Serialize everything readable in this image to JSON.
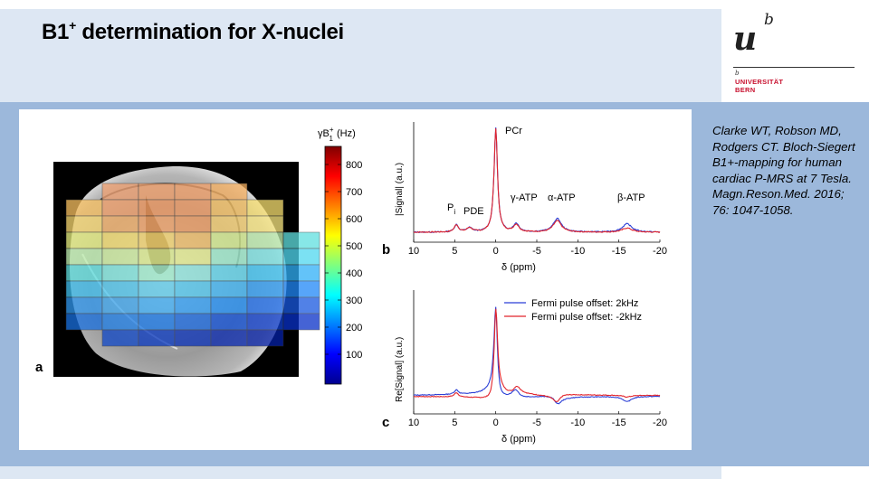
{
  "slide": {
    "title_main": "B1",
    "title_sup": "+",
    "title_rest": " determination for X-nuclei"
  },
  "logo": {
    "u": "u",
    "b": "b",
    "small_b": "b",
    "line1": "UNIVERSITÄT",
    "line2": "BERN"
  },
  "citation": "Clarke WT, Robson MD, Rodgers CT. Bloch-Siegert B1+-mapping for human cardiac P-MRS at 7 Tesla. Magn.Reson.Med. 2016; 76: 1047-1058.",
  "figure": {
    "panel_labels": {
      "a": "a",
      "b": "b",
      "c": "c"
    },
    "colorbar": {
      "label": "γB1+ (Hz)",
      "label_gamma_b": "γB",
      "label_sup": "+",
      "label_sub": "1",
      "label_unit": "(Hz)",
      "ticks": [
        "800",
        "700",
        "600",
        "500",
        "400",
        "300",
        "200",
        "100"
      ]
    },
    "ticks_x": [
      "10",
      "5",
      "0",
      "-5",
      "-10",
      "-15",
      "-20"
    ],
    "xlabel": "δ (ppm)",
    "ylabel_b": "|Signal| (a.u.)",
    "ylabel_c": "Re[Signal] (a.u.)",
    "peaks": {
      "pcr": "PCr",
      "pi_p": "P",
      "pi_i": "i",
      "pde": "PDE",
      "gatp": "γ-ATP",
      "aatp": "α-ATP",
      "batp": "β-ATP"
    },
    "legend": {
      "blue": "Fermi pulse offset: 2kHz",
      "red": "Fermi pulse offset: -2kHz"
    },
    "colors": {
      "blue": "#2b3fd6",
      "red": "#e2242b"
    }
  },
  "chart_data": [
    {
      "type": "line",
      "title": "",
      "xlabel": "δ (ppm)",
      "ylabel": "|Signal| (a.u.)",
      "xlim": [
        10,
        -20
      ],
      "xticks": [
        10,
        5,
        0,
        -5,
        -10,
        -15,
        -20
      ],
      "series": [
        {
          "name": "Fermi pulse offset: 2kHz",
          "peaks_ppm": [
            0,
            2.3,
            -2.5,
            -7.5,
            -16
          ],
          "peak_heights": [
            1.0,
            0.05,
            0.08,
            0.13,
            0.09
          ]
        },
        {
          "name": "Fermi pulse offset: -2kHz",
          "peaks_ppm": [
            0,
            2.3,
            -2.5,
            -7.5,
            -16
          ],
          "peak_heights": [
            0.97,
            0.05,
            0.07,
            0.1,
            0.05
          ]
        }
      ],
      "annotations": [
        "PCr",
        "Pi",
        "PDE",
        "γ-ATP",
        "α-ATP",
        "β-ATP"
      ]
    },
    {
      "type": "line",
      "title": "",
      "xlabel": "δ (ppm)",
      "ylabel": "Re[Signal] (a.u.)",
      "xlim": [
        10,
        -20
      ],
      "xticks": [
        10,
        5,
        0,
        -5,
        -10,
        -15,
        -20
      ],
      "series": [
        {
          "name": "Fermi pulse offset: 2kHz"
        },
        {
          "name": "Fermi pulse offset: -2kHz"
        }
      ]
    }
  ]
}
